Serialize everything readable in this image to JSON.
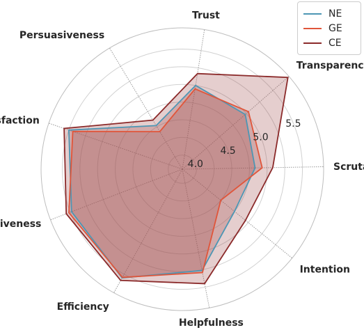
{
  "chart_data": {
    "type": "radar",
    "categories": [
      "Scrutability",
      "Transparency",
      "Trust",
      "Persuasiveness",
      "Satisfaction",
      "Effectiveness",
      "Efficiency",
      "Helpfulness",
      "Intention"
    ],
    "rlim": [
      3.8,
      5.8
    ],
    "rticks": [
      4.0,
      4.5,
      5.0,
      5.5
    ],
    "rtick_labels": [
      "4.0",
      "4.5",
      "5.0",
      "5.5"
    ],
    "grid": true,
    "legend_position": "top-right",
    "series": [
      {
        "name": "NE",
        "color": "#4c96b4",
        "fill": "#a05050",
        "values": [
          4.83,
          4.98,
          5.0,
          4.52,
          5.5,
          5.48,
          5.56,
          5.26,
          4.75
        ]
      },
      {
        "name": "GE",
        "color": "#e0553a",
        "fill": "#a05050",
        "values": [
          4.93,
          5.04,
          4.95,
          4.42,
          5.44,
          5.52,
          5.55,
          5.29,
          4.5
        ]
      },
      {
        "name": "CE",
        "color": "#8b2a2a",
        "fill": "#a05050",
        "values": [
          5.08,
          5.78,
          5.17,
          4.61,
          5.57,
          5.56,
          5.6,
          5.45,
          4.95
        ]
      }
    ]
  }
}
